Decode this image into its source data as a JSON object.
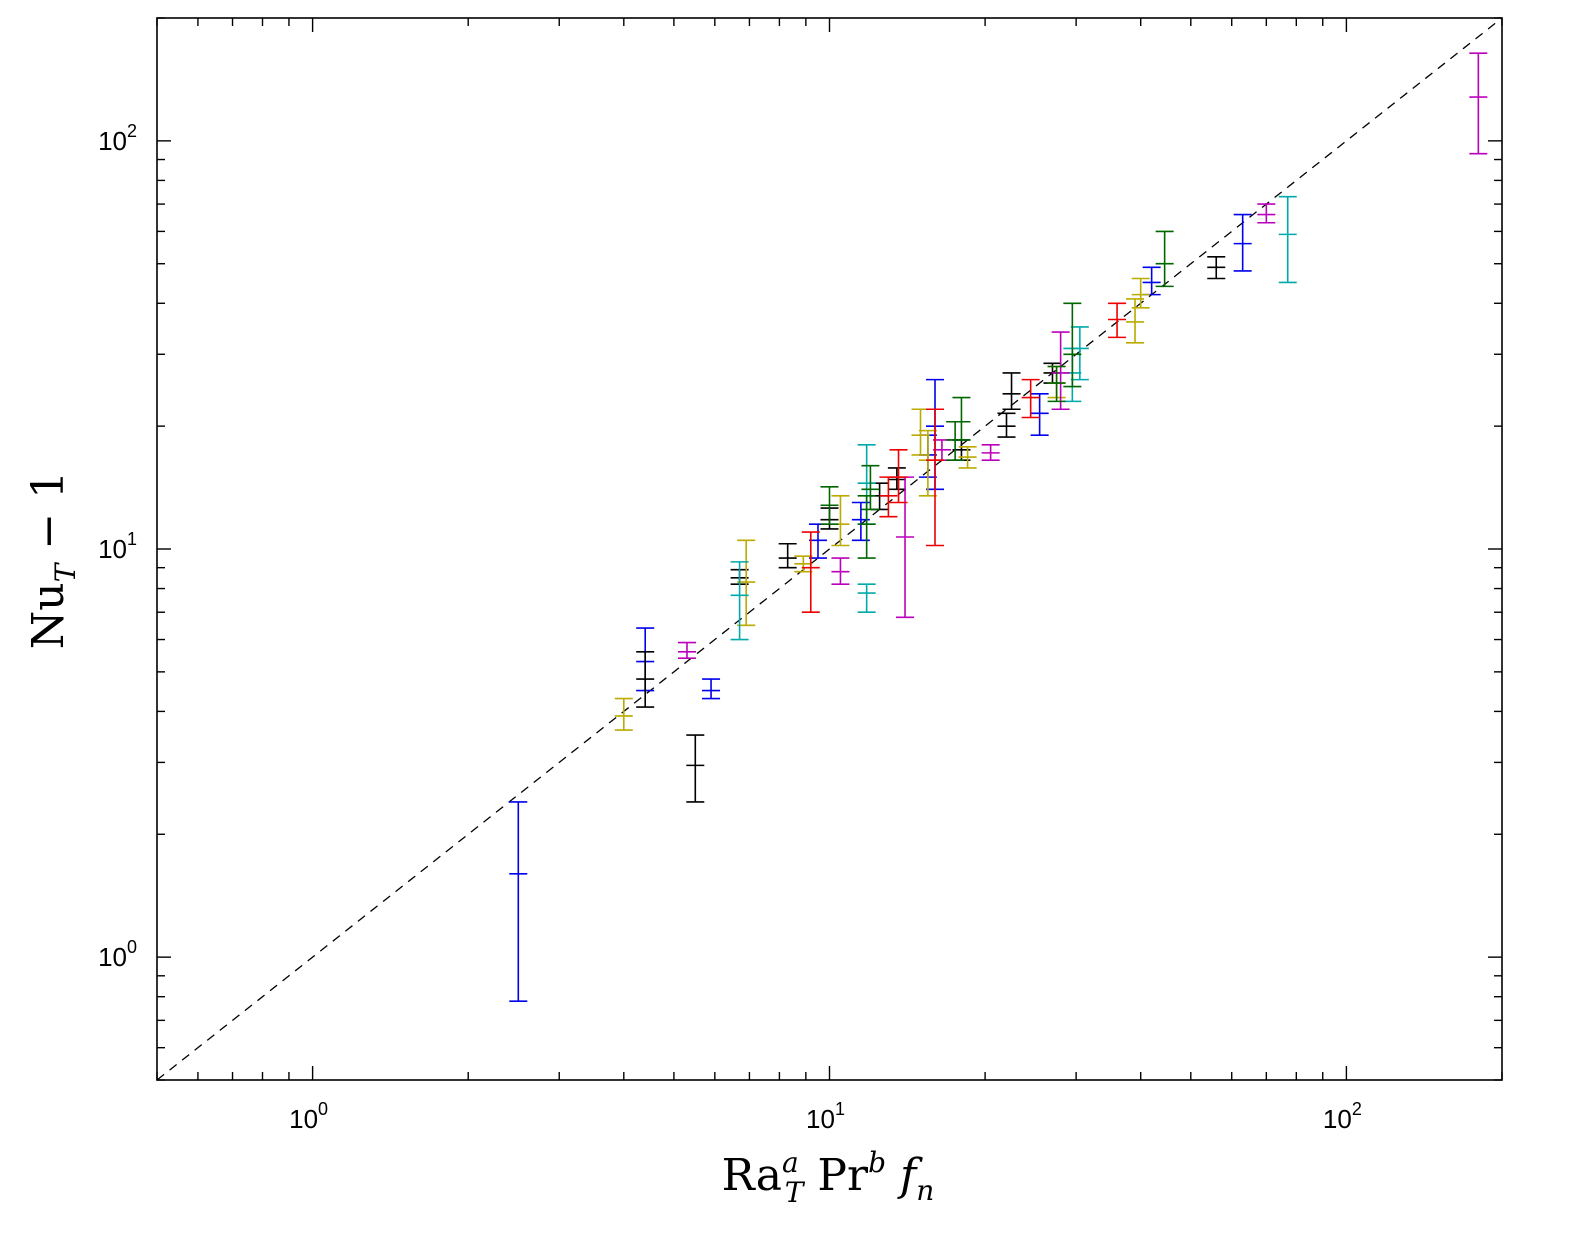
{
  "chart_data": {
    "type": "scatter",
    "xscale": "log",
    "yscale": "log",
    "xlim": [
      0.5,
      200
    ],
    "ylim": [
      0.5,
      200
    ],
    "grid": false,
    "legend": "none",
    "xlabel": {
      "main": "Ra",
      "sub": "T",
      "sup": "a",
      "main2": "Pr",
      "sup2": "b",
      "italic": "f",
      "italic_sub": "n"
    },
    "ylabel": {
      "main": "Nu",
      "sub": "T",
      "suffix": " − 1"
    },
    "x_ticks": [
      {
        "value": 1,
        "base": "10",
        "exp": "0"
      },
      {
        "value": 10,
        "base": "10",
        "exp": "1"
      },
      {
        "value": 100,
        "base": "10",
        "exp": "2"
      }
    ],
    "y_ticks": [
      {
        "value": 1,
        "base": "10",
        "exp": "0"
      },
      {
        "value": 10,
        "base": "10",
        "exp": "1"
      },
      {
        "value": 100,
        "base": "10",
        "exp": "2"
      }
    ],
    "reference_line": {
      "style": "dashed",
      "color": "#000000",
      "x": [
        0.5,
        200
      ],
      "y": [
        0.5,
        200
      ]
    },
    "colors": {
      "blue": "#0000ee",
      "black": "#000000",
      "yellow": "#bbaa00",
      "cyan": "#00aaaa",
      "magenta": "#bb00bb",
      "red": "#ee0000",
      "green": "#006600"
    },
    "series": [
      {
        "color": "blue",
        "points": [
          {
            "x": 2.5,
            "y": 1.6,
            "lo": 0.78,
            "hi": 2.4
          },
          {
            "x": 4.4,
            "y": 5.3,
            "lo": 4.5,
            "hi": 6.4
          },
          {
            "x": 5.9,
            "y": 4.5,
            "lo": 4.3,
            "hi": 4.8
          },
          {
            "x": 9.5,
            "y": 10.5,
            "lo": 9.5,
            "hi": 11.5
          },
          {
            "x": 11.5,
            "y": 11.8,
            "lo": 10.5,
            "hi": 13
          },
          {
            "x": 15.5,
            "y": 17,
            "lo": 15,
            "hi": 19
          },
          {
            "x": 16.0,
            "y": 20,
            "lo": 14,
            "hi": 26
          },
          {
            "x": 25.5,
            "y": 21.5,
            "lo": 19,
            "hi": 24
          },
          {
            "x": 42,
            "y": 45,
            "lo": 42,
            "hi": 49
          },
          {
            "x": 63,
            "y": 56,
            "lo": 48,
            "hi": 66
          }
        ]
      },
      {
        "color": "black",
        "points": [
          {
            "x": 4.4,
            "y": 4.8,
            "lo": 4.1,
            "hi": 5.6
          },
          {
            "x": 5.5,
            "y": 2.95,
            "lo": 2.4,
            "hi": 3.5
          },
          {
            "x": 6.7,
            "y": 8.5,
            "lo": 8.2,
            "hi": 8.9
          },
          {
            "x": 8.3,
            "y": 9.5,
            "lo": 9.0,
            "hi": 10.3
          },
          {
            "x": 10.0,
            "y": 11.8,
            "lo": 11.2,
            "hi": 12.6
          },
          {
            "x": 12.5,
            "y": 13.5,
            "lo": 12.5,
            "hi": 14.5
          },
          {
            "x": 13.5,
            "y": 14.8,
            "lo": 14,
            "hi": 15.8
          },
          {
            "x": 18,
            "y": 17.5,
            "lo": 16.5,
            "hi": 18.5
          },
          {
            "x": 22,
            "y": 20,
            "lo": 18.8,
            "hi": 21.5
          },
          {
            "x": 22.5,
            "y": 24,
            "lo": 22,
            "hi": 27
          },
          {
            "x": 27,
            "y": 27,
            "lo": 25.5,
            "hi": 28.5
          },
          {
            "x": 56,
            "y": 49,
            "lo": 46,
            "hi": 52
          }
        ]
      },
      {
        "color": "yellow",
        "points": [
          {
            "x": 4.0,
            "y": 3.9,
            "lo": 3.6,
            "hi": 4.3
          },
          {
            "x": 6.9,
            "y": 8.3,
            "lo": 6.5,
            "hi": 10.5
          },
          {
            "x": 8.9,
            "y": 9.2,
            "lo": 8.8,
            "hi": 9.6
          },
          {
            "x": 10.5,
            "y": 11.5,
            "lo": 10.2,
            "hi": 13.5
          },
          {
            "x": 15.5,
            "y": 16.5,
            "lo": 13.5,
            "hi": 19.5
          },
          {
            "x": 15.0,
            "y": 19,
            "lo": 17,
            "hi": 22
          },
          {
            "x": 18.5,
            "y": 16.8,
            "lo": 15.8,
            "hi": 17.8
          },
          {
            "x": 27.5,
            "y": 25.5,
            "lo": 23.5,
            "hi": 28
          },
          {
            "x": 39,
            "y": 36,
            "lo": 32,
            "hi": 41
          },
          {
            "x": 40,
            "y": 42,
            "lo": 39,
            "hi": 46
          }
        ]
      },
      {
        "color": "cyan",
        "points": [
          {
            "x": 6.7,
            "y": 7.7,
            "lo": 6.0,
            "hi": 9.3
          },
          {
            "x": 11.8,
            "y": 7.8,
            "lo": 7.0,
            "hi": 8.2
          },
          {
            "x": 11.8,
            "y": 14.5,
            "lo": 11.5,
            "hi": 18
          },
          {
            "x": 29.5,
            "y": 27,
            "lo": 23,
            "hi": 31
          },
          {
            "x": 30.5,
            "y": 31,
            "lo": 26,
            "hi": 35
          },
          {
            "x": 77,
            "y": 59,
            "lo": 45,
            "hi": 73
          }
        ]
      },
      {
        "color": "magenta",
        "points": [
          {
            "x": 5.3,
            "y": 5.6,
            "lo": 5.4,
            "hi": 5.9
          },
          {
            "x": 10.5,
            "y": 8.8,
            "lo": 8.2,
            "hi": 9.5
          },
          {
            "x": 14.0,
            "y": 10.7,
            "lo": 6.8,
            "hi": 15
          },
          {
            "x": 16.5,
            "y": 17.5,
            "lo": 16.5,
            "hi": 18.5
          },
          {
            "x": 20.5,
            "y": 17.2,
            "lo": 16.5,
            "hi": 18
          },
          {
            "x": 28,
            "y": 27,
            "lo": 22,
            "hi": 34
          },
          {
            "x": 70,
            "y": 66,
            "lo": 63,
            "hi": 70
          },
          {
            "x": 180,
            "y": 128,
            "lo": 93,
            "hi": 164
          }
        ]
      },
      {
        "color": "red",
        "points": [
          {
            "x": 9.2,
            "y": 9.0,
            "lo": 7.0,
            "hi": 11.0
          },
          {
            "x": 13.0,
            "y": 13.5,
            "lo": 12.0,
            "hi": 15
          },
          {
            "x": 13.6,
            "y": 15.0,
            "lo": 13,
            "hi": 17.5
          },
          {
            "x": 16.0,
            "y": 16.5,
            "lo": 10.2,
            "hi": 22
          },
          {
            "x": 24.5,
            "y": 23.5,
            "lo": 21,
            "hi": 26
          },
          {
            "x": 36,
            "y": 36.5,
            "lo": 33,
            "hi": 40
          }
        ]
      },
      {
        "color": "green",
        "points": [
          {
            "x": 10.0,
            "y": 12.8,
            "lo": 11.5,
            "hi": 14.2
          },
          {
            "x": 11.8,
            "y": 11.5,
            "lo": 9.5,
            "hi": 13.5
          },
          {
            "x": 12.0,
            "y": 14,
            "lo": 12.5,
            "hi": 16
          },
          {
            "x": 17.5,
            "y": 18.5,
            "lo": 16.5,
            "hi": 20.5
          },
          {
            "x": 18.0,
            "y": 20.5,
            "lo": 18.5,
            "hi": 23.5
          },
          {
            "x": 27.5,
            "y": 25.5,
            "lo": 23,
            "hi": 28
          },
          {
            "x": 29.5,
            "y": 30,
            "lo": 25,
            "hi": 40
          },
          {
            "x": 44.5,
            "y": 50,
            "lo": 44,
            "hi": 60
          }
        ]
      }
    ]
  }
}
